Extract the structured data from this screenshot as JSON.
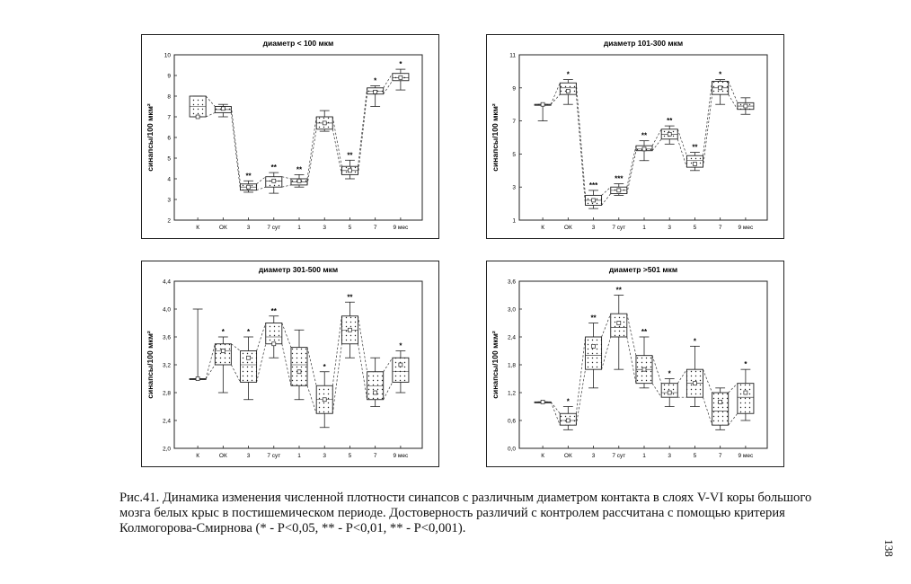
{
  "caption": "Рис.41. Динамика изменения численной плотности синапсов с различным диаметром контакта в слоях V-VI коры большого мозга белых крыс в постишемическом периоде. Достоверность различий с контролем рассчитана с помощью критерия Колмогорова-Смирнова (* - P<0,05, ** - P<0,01, ** - P<0,001).",
  "page_number": "138",
  "chart_data": [
    {
      "type": "box",
      "title": "диаметр < 100 мкм",
      "ylabel": "синапсы/100 мкм²",
      "categories": [
        "К",
        "ОК",
        "3",
        "7 сут",
        "1",
        "3",
        "5",
        "7",
        "9 мес"
      ],
      "ylim": [
        2,
        10
      ],
      "yticks": [
        "2",
        "3",
        "4",
        "5",
        "6",
        "7",
        "8",
        "9",
        "10"
      ],
      "yticks_values": [
        2,
        3,
        4,
        5,
        6,
        7,
        8,
        9,
        10
      ],
      "boxes": [
        {
          "min": 7.0,
          "q1": 7.0,
          "median": 7.5,
          "q3": 8.0,
          "max": 8.0,
          "mean": 7.0,
          "sig": ""
        },
        {
          "min": 7.0,
          "q1": 7.2,
          "median": 7.35,
          "q3": 7.5,
          "max": 7.6,
          "mean": 7.4,
          "sig": ""
        },
        {
          "min": 3.35,
          "q1": 3.45,
          "median": 3.6,
          "q3": 3.75,
          "max": 3.9,
          "mean": 3.6,
          "sig": "**"
        },
        {
          "min": 3.3,
          "q1": 3.6,
          "median": 3.9,
          "q3": 4.1,
          "max": 4.3,
          "mean": 3.9,
          "sig": "**"
        },
        {
          "min": 3.6,
          "q1": 3.7,
          "median": 3.85,
          "q3": 4.0,
          "max": 4.2,
          "mean": 3.9,
          "sig": "**"
        },
        {
          "min": 6.3,
          "q1": 6.4,
          "median": 6.7,
          "q3": 7.0,
          "max": 7.3,
          "mean": 6.7,
          "sig": ""
        },
        {
          "min": 4.0,
          "q1": 4.2,
          "median": 4.4,
          "q3": 4.6,
          "max": 4.9,
          "mean": 4.4,
          "sig": "**"
        },
        {
          "min": 7.5,
          "q1": 8.1,
          "median": 8.25,
          "q3": 8.4,
          "max": 8.5,
          "mean": 8.2,
          "sig": "*"
        },
        {
          "min": 8.3,
          "q1": 8.75,
          "median": 8.9,
          "q3": 9.1,
          "max": 9.3,
          "mean": 8.9,
          "sig": "*"
        }
      ]
    },
    {
      "type": "box",
      "title": "диаметр 101-300 мкм",
      "ylabel": "синапсы/100 мкм²",
      "categories": [
        "К",
        "ОК",
        "3",
        "7 сут",
        "1",
        "3",
        "5",
        "7",
        "9 мес"
      ],
      "ylim": [
        1,
        11
      ],
      "yticks": [
        "1",
        "3",
        "5",
        "7",
        "9",
        "11"
      ],
      "yticks_values": [
        1,
        3,
        5,
        7,
        9,
        11
      ],
      "boxes": [
        {
          "min": 7.0,
          "q1": 8.0,
          "median": 8.0,
          "q3": 8.0,
          "max": 8.0,
          "mean": 8.0,
          "sig": ""
        },
        {
          "min": 8.0,
          "q1": 8.6,
          "median": 9.0,
          "q3": 9.3,
          "max": 9.5,
          "mean": 8.8,
          "sig": "*"
        },
        {
          "min": 1.7,
          "q1": 1.9,
          "median": 2.2,
          "q3": 2.5,
          "max": 2.8,
          "mean": 2.2,
          "sig": "***"
        },
        {
          "min": 2.5,
          "q1": 2.6,
          "median": 2.8,
          "q3": 3.0,
          "max": 3.2,
          "mean": 2.8,
          "sig": "***"
        },
        {
          "min": 4.6,
          "q1": 5.2,
          "median": 5.3,
          "q3": 5.5,
          "max": 5.8,
          "mean": 5.3,
          "sig": "**"
        },
        {
          "min": 5.6,
          "q1": 5.9,
          "median": 6.2,
          "q3": 6.5,
          "max": 6.7,
          "mean": 6.2,
          "sig": "**"
        },
        {
          "min": 4.0,
          "q1": 4.2,
          "median": 4.6,
          "q3": 4.9,
          "max": 5.1,
          "mean": 4.4,
          "sig": "**"
        },
        {
          "min": 8.0,
          "q1": 8.6,
          "median": 9.0,
          "q3": 9.4,
          "max": 9.5,
          "mean": 9.0,
          "sig": "*"
        },
        {
          "min": 7.4,
          "q1": 7.7,
          "median": 7.9,
          "q3": 8.1,
          "max": 8.4,
          "mean": 7.9,
          "sig": ""
        }
      ]
    },
    {
      "type": "box",
      "title": "диаметр 301-500 мкм",
      "ylabel": "синапсы/100 мкм²",
      "categories": [
        "К",
        "ОК",
        "3",
        "7 сут",
        "1",
        "3",
        "5",
        "7",
        "9 мес"
      ],
      "ylim": [
        2.0,
        4.4
      ],
      "yticks": [
        "2,0",
        "2,4",
        "2,8",
        "3,2",
        "3,6",
        "4,0",
        "4,4"
      ],
      "yticks_values": [
        2.0,
        2.4,
        2.8,
        3.2,
        3.6,
        4.0,
        4.4
      ],
      "boxes": [
        {
          "min": 3.0,
          "q1": 3.0,
          "median": 3.0,
          "q3": 3.0,
          "max": 4.0,
          "mean": 3.0,
          "sig": ""
        },
        {
          "min": 2.8,
          "q1": 3.2,
          "median": 3.4,
          "q3": 3.5,
          "max": 3.6,
          "mean": 3.4,
          "sig": "*"
        },
        {
          "min": 2.7,
          "q1": 2.95,
          "median": 3.2,
          "q3": 3.4,
          "max": 3.6,
          "mean": 3.3,
          "sig": "*"
        },
        {
          "min": 3.3,
          "q1": 3.5,
          "median": 3.6,
          "q3": 3.8,
          "max": 3.9,
          "mean": 3.5,
          "sig": "**"
        },
        {
          "min": 2.7,
          "q1": 2.9,
          "median": 3.2,
          "q3": 3.45,
          "max": 3.7,
          "mean": 3.1,
          "sig": ""
        },
        {
          "min": 2.3,
          "q1": 2.5,
          "median": 2.7,
          "q3": 2.9,
          "max": 3.1,
          "mean": 2.7,
          "sig": "*"
        },
        {
          "min": 3.3,
          "q1": 3.5,
          "median": 3.7,
          "q3": 3.9,
          "max": 4.1,
          "mean": 3.7,
          "sig": "**"
        },
        {
          "min": 2.6,
          "q1": 2.7,
          "median": 2.9,
          "q3": 3.1,
          "max": 3.3,
          "mean": 2.8,
          "sig": ""
        },
        {
          "min": 2.8,
          "q1": 2.95,
          "median": 3.1,
          "q3": 3.3,
          "max": 3.4,
          "mean": 3.2,
          "sig": "*"
        }
      ]
    },
    {
      "type": "box",
      "title": "диаметр >501 мкм",
      "ylabel": "синапсы/100 мкм²",
      "categories": [
        "К",
        "ОК",
        "3",
        "7 сут",
        "1",
        "3",
        "5",
        "7",
        "9 мес"
      ],
      "ylim": [
        0.0,
        3.6
      ],
      "yticks": [
        "0,0",
        "0,6",
        "1,2",
        "1,8",
        "2,4",
        "3,0",
        "3,6"
      ],
      "yticks_values": [
        0.0,
        0.6,
        1.2,
        1.8,
        2.4,
        3.0,
        3.6
      ],
      "boxes": [
        {
          "min": 1.0,
          "q1": 1.0,
          "median": 1.0,
          "q3": 1.0,
          "max": 1.0,
          "mean": 1.0,
          "sig": ""
        },
        {
          "min": 0.4,
          "q1": 0.5,
          "median": 0.6,
          "q3": 0.75,
          "max": 0.9,
          "mean": 0.6,
          "sig": "*"
        },
        {
          "min": 1.3,
          "q1": 1.7,
          "median": 2.0,
          "q3": 2.4,
          "max": 2.7,
          "mean": 2.2,
          "sig": "**"
        },
        {
          "min": 1.7,
          "q1": 2.4,
          "median": 2.6,
          "q3": 2.9,
          "max": 3.3,
          "mean": 2.7,
          "sig": "**"
        },
        {
          "min": 1.3,
          "q1": 1.4,
          "median": 1.7,
          "q3": 2.0,
          "max": 2.4,
          "mean": 1.7,
          "sig": "**"
        },
        {
          "min": 0.9,
          "q1": 1.1,
          "median": 1.2,
          "q3": 1.4,
          "max": 1.5,
          "mean": 1.2,
          "sig": "*"
        },
        {
          "min": 0.9,
          "q1": 1.1,
          "median": 1.4,
          "q3": 1.7,
          "max": 2.2,
          "mean": 1.4,
          "sig": "*"
        },
        {
          "min": 0.4,
          "q1": 0.5,
          "median": 0.8,
          "q3": 1.2,
          "max": 1.3,
          "mean": 1.0,
          "sig": ""
        },
        {
          "min": 0.6,
          "q1": 0.75,
          "median": 1.1,
          "q3": 1.4,
          "max": 1.7,
          "mean": 1.2,
          "sig": "*"
        }
      ]
    }
  ]
}
